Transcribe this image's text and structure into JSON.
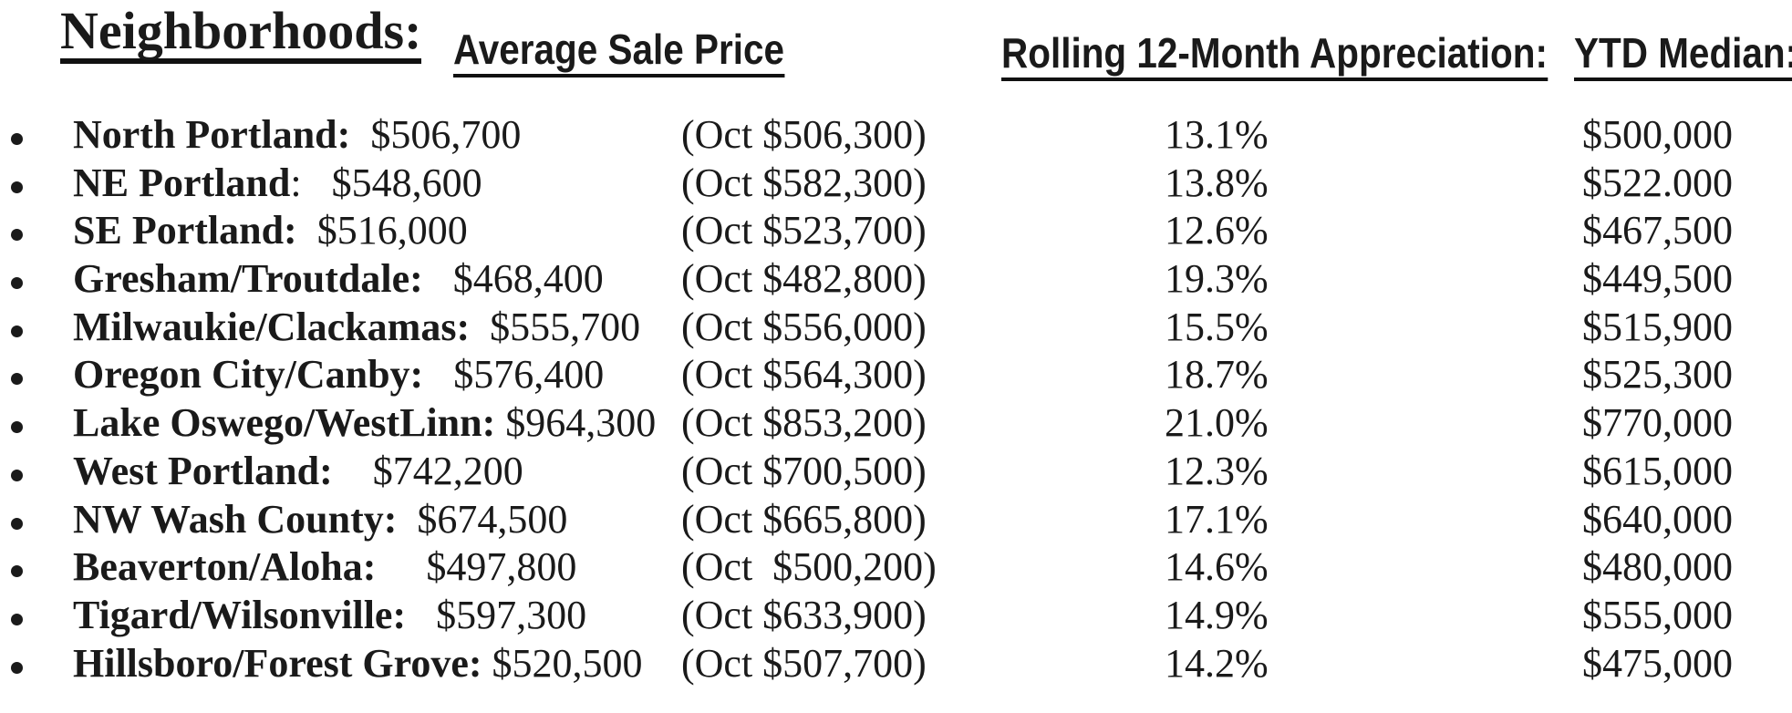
{
  "title": "Neighborhoods:",
  "columns": {
    "avg_sale_price": "Average Sale Price",
    "appreciation": "Rolling 12-Month Appreciation:",
    "ytd_median": "YTD Median:"
  },
  "colors": {
    "text": "#1a1a1a",
    "background": "#ffffff"
  },
  "rows": [
    {
      "label": "North Portland:",
      "price": "  $506,700",
      "oct": "(Oct $506,300)",
      "pct": "13.1%",
      "median": "$500,000"
    },
    {
      "label": "NE Portland",
      "price": ":   $548,600",
      "oct": "(Oct $582,300)",
      "pct": "13.8%",
      "median": "$522.000"
    },
    {
      "label": "SE Portland:",
      "price": "  $516,000",
      "oct": "(Oct $523,700)",
      "pct": "12.6%",
      "median": "$467,500"
    },
    {
      "label": "Gresham/Troutdale:",
      "price": "   $468,400",
      "oct": "(Oct $482,800)",
      "pct": "19.3%",
      "median": "$449,500"
    },
    {
      "label": "Milwaukie/Clackamas:",
      "price": "  $555,700",
      "oct": "(Oct $556,000)",
      "pct": "15.5%",
      "median": "$515,900"
    },
    {
      "label": "Oregon City/Canby:",
      "price": "   $576,400",
      "oct": "(Oct $564,300)",
      "pct": "18.7%",
      "median": "$525,300"
    },
    {
      "label": "Lake Oswego/WestLinn:",
      "price": " $964,300",
      "oct": "(Oct $853,200)",
      "pct": "21.0%",
      "median": "$770,000"
    },
    {
      "label": "West Portland:",
      "price": "    $742,200",
      "oct": "(Oct $700,500)",
      "pct": "12.3%",
      "median": "$615,000"
    },
    {
      "label": "NW Wash County:",
      "price": "  $674,500",
      "oct": "(Oct $665,800)",
      "pct": "17.1%",
      "median": "$640,000"
    },
    {
      "label": "Beaverton/Aloha:",
      "price": "     $497,800",
      "oct": "(Oct  $500,200)",
      "pct": "14.6%",
      "median": "$480,000"
    },
    {
      "label": "Tigard/Wilsonville:",
      "price": "   $597,300",
      "oct": "(Oct $633,900)",
      "pct": "14.9%",
      "median": "$555,000"
    },
    {
      "label": "Hillsboro/Forest Grove:",
      "price": " $520,500",
      "oct": "(Oct $507,700)",
      "pct": "14.2%",
      "median": "$475,000"
    }
  ]
}
